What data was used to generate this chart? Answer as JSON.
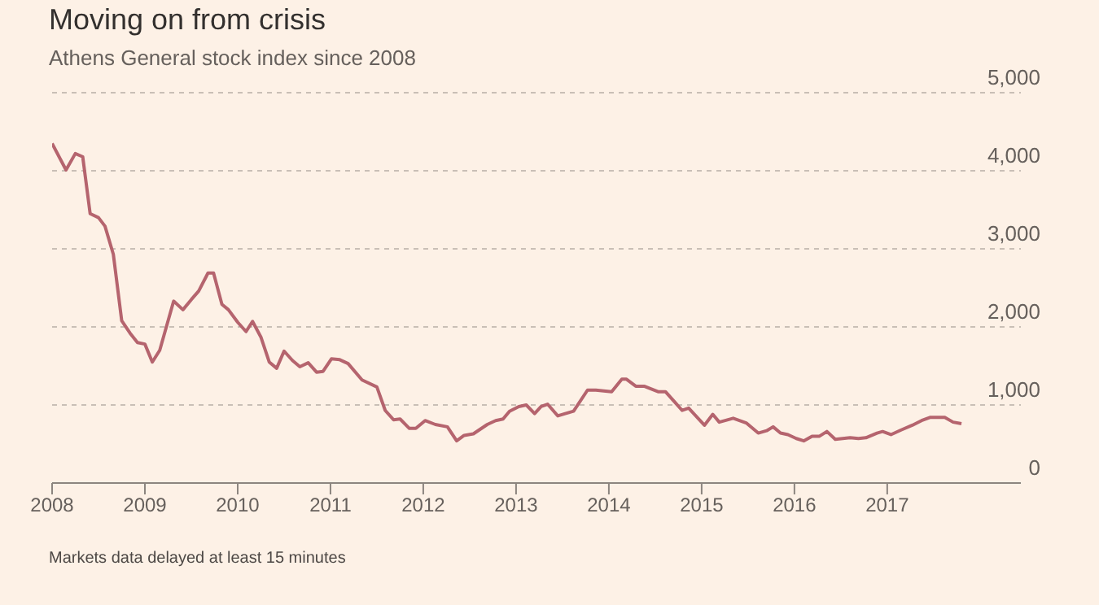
{
  "chart_data": {
    "type": "line",
    "title": "Moving on from crisis",
    "subtitle": "Athens General stock index since 2008",
    "annotations": [
      "Markets data delayed at least 15 minutes"
    ],
    "x": [
      2008.0,
      2008.15,
      2008.25,
      2008.33,
      2008.41,
      2008.5,
      2008.57,
      2008.66,
      2008.75,
      2008.84,
      2008.92,
      2009.0,
      2009.08,
      2009.16,
      2009.31,
      2009.41,
      2009.5,
      2009.58,
      2009.68,
      2009.74,
      2009.83,
      2009.9,
      2010.0,
      2010.09,
      2010.16,
      2010.25,
      2010.34,
      2010.42,
      2010.5,
      2010.59,
      2010.67,
      2010.76,
      2010.85,
      2010.92,
      2011.01,
      2011.1,
      2011.19,
      2011.34,
      2011.5,
      2011.59,
      2011.68,
      2011.75,
      2011.85,
      2011.92,
      2012.02,
      2012.13,
      2012.26,
      2012.36,
      2012.44,
      2012.54,
      2012.69,
      2012.78,
      2012.86,
      2012.93,
      2013.03,
      2013.11,
      2013.2,
      2013.27,
      2013.34,
      2013.45,
      2013.53,
      2013.62,
      2013.77,
      2013.86,
      2014.03,
      2014.14,
      2014.19,
      2014.29,
      2014.38,
      2014.53,
      2014.61,
      2014.7,
      2014.79,
      2014.86,
      2015.03,
      2015.12,
      2015.19,
      2015.34,
      2015.48,
      2015.61,
      2015.7,
      2015.77,
      2015.85,
      2015.93,
      2016.02,
      2016.1,
      2016.19,
      2016.27,
      2016.35,
      2016.44,
      2016.6,
      2016.69,
      2016.77,
      2016.89,
      2016.95,
      2017.04,
      2017.15,
      2017.27,
      2017.37,
      2017.46,
      2017.53,
      2017.62,
      2017.71,
      2017.8
    ],
    "series": [
      {
        "color": "#b5646e",
        "values": [
          4350,
          4010,
          4220,
          4180,
          3450,
          3400,
          3290,
          2930,
          2080,
          1920,
          1800,
          1780,
          1550,
          1700,
          2330,
          2220,
          2350,
          2460,
          2690,
          2690,
          2290,
          2220,
          2060,
          1940,
          2070,
          1870,
          1550,
          1470,
          1690,
          1570,
          1490,
          1540,
          1420,
          1430,
          1590,
          1580,
          1530,
          1320,
          1230,
          930,
          810,
          820,
          700,
          700,
          800,
          750,
          720,
          540,
          610,
          630,
          750,
          800,
          820,
          920,
          980,
          1000,
          890,
          980,
          1010,
          860,
          890,
          920,
          1190,
          1190,
          1170,
          1330,
          1330,
          1240,
          1240,
          1170,
          1170,
          1050,
          930,
          960,
          740,
          880,
          780,
          830,
          770,
          640,
          670,
          720,
          640,
          620,
          570,
          540,
          600,
          600,
          660,
          560,
          580,
          570,
          580,
          640,
          660,
          620,
          680,
          740,
          800,
          840,
          840,
          840,
          780,
          760
        ]
      }
    ],
    "xlim": [
      2008,
      2018.44
    ],
    "xticks": [
      2008,
      2009,
      2010,
      2011,
      2012,
      2013,
      2014,
      2015,
      2016,
      2017
    ],
    "ylim": [
      0,
      5000
    ],
    "yticks": [
      0,
      {
        "value": 1000,
        "label": "1,000"
      },
      {
        "value": 2000,
        "label": "2,000"
      },
      {
        "value": 3000,
        "label": "3,000"
      },
      {
        "value": 4000,
        "label": "4,000"
      },
      {
        "value": 5000,
        "label": "5,000"
      }
    ],
    "grid": "y"
  }
}
